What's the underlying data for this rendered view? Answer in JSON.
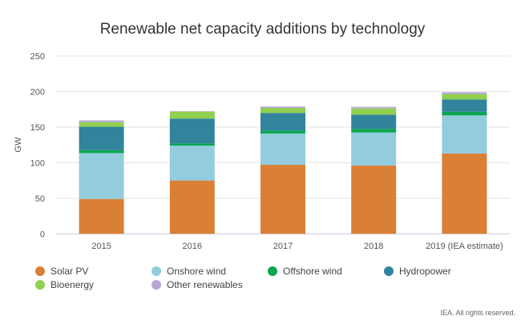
{
  "chart_data": {
    "type": "bar",
    "stacked": true,
    "title": "Renewable net capacity additions by technology",
    "xlabel": "",
    "ylabel": "GW",
    "ylim": [
      0,
      250
    ],
    "yticks": [
      0,
      50,
      100,
      150,
      200,
      250
    ],
    "grid": true,
    "legend_placement": "bottom",
    "categories": [
      "2015",
      "2016",
      "2017",
      "2018",
      "2019 (IEA estimate)"
    ],
    "series": [
      {
        "name": "Solar PV",
        "color": "#d97f36",
        "values": [
          49,
          75,
          97,
          96,
          113
        ]
      },
      {
        "name": "Onshore wind",
        "color": "#93ccdc",
        "values": [
          64.5,
          49,
          44,
          46.5,
          53.5
        ]
      },
      {
        "name": "Offshore wind",
        "color": "#0aa650",
        "values": [
          4,
          3,
          4,
          5,
          5
        ]
      },
      {
        "name": "Hydropower",
        "color": "#31849b",
        "values": [
          33,
          35,
          25,
          20,
          17.5
        ]
      },
      {
        "name": "Bioenergy",
        "color": "#92d050",
        "values": [
          6.5,
          10,
          7,
          9,
          7.5
        ]
      },
      {
        "name": "Other renewables",
        "color": "#b4a7d6",
        "values": [
          2.5,
          0.5,
          2,
          2,
          2.5
        ]
      }
    ]
  },
  "footer": "IEA. All rights reserved."
}
